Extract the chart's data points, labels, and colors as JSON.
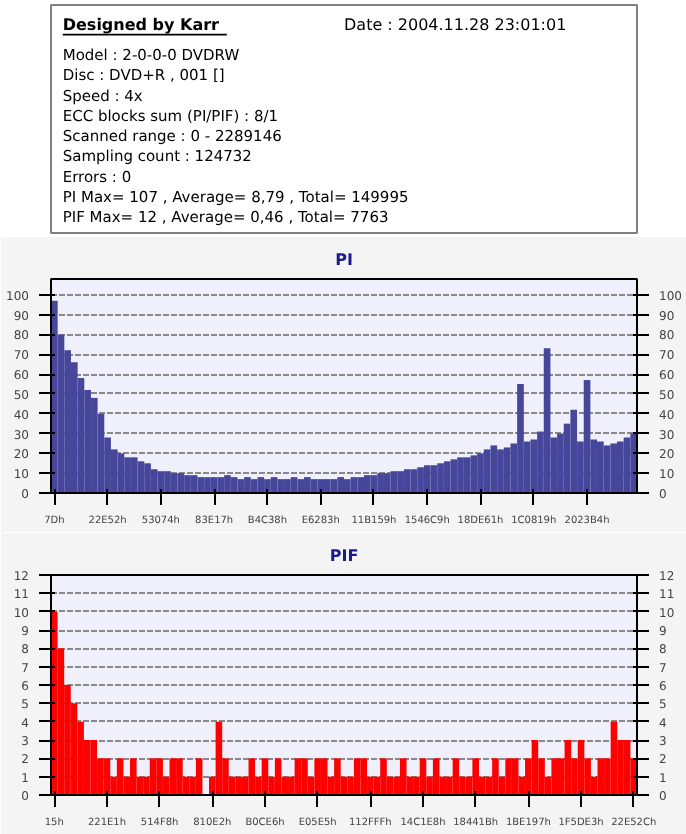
{
  "chart_data": [
    {
      "type": "other",
      "title": "Designed by Karr",
      "subtitle": "Date : 2004.11.28 23:01:01",
      "annotations": [
        "Model : 2-0-0-0 DVDRW",
        "Disc : DVD+R , 001 []",
        "Speed : 4x",
        "ECC blocks sum (PI/PIF) : 8/1",
        "Scanned range : 0 - 2289146",
        "Sampling count : 124732",
        "Errors : 0",
        "PI Max= 107 , Average= 8,79 , Total= 149995",
        "PIF Max= 12 , Average= 0,46 , Total= 7763"
      ]
    },
    {
      "type": "bar",
      "title": "PI",
      "color": "#46469a",
      "grid": "y",
      "ylim": [
        0,
        108
      ],
      "yticks": [
        0,
        10,
        20,
        30,
        40,
        50,
        60,
        70,
        80,
        90,
        100
      ],
      "y2lim": [
        0,
        108
      ],
      "y2ticks": [
        0,
        10,
        20,
        30,
        40,
        50,
        60,
        70,
        80,
        90,
        100
      ],
      "categories": [
        "7Dh",
        null,
        null,
        null,
        null,
        null,
        null,
        null,
        "22E52h",
        null,
        null,
        null,
        null,
        null,
        null,
        null,
        "53074h",
        null,
        null,
        null,
        null,
        null,
        null,
        null,
        "83E17h",
        null,
        null,
        null,
        null,
        null,
        null,
        null,
        "B4C38h",
        null,
        null,
        null,
        null,
        null,
        null,
        null,
        "E6283h",
        null,
        null,
        null,
        null,
        null,
        null,
        null,
        "11B159h",
        null,
        null,
        null,
        null,
        null,
        null,
        null,
        "1546C9h",
        null,
        null,
        null,
        null,
        null,
        null,
        null,
        "18DE61h",
        null,
        null,
        null,
        null,
        null,
        null,
        null,
        "1C0819h",
        null,
        null,
        null,
        null,
        null,
        null,
        null,
        "2023B4h",
        null,
        null,
        null,
        null,
        null,
        null,
        null
      ],
      "values": [
        97,
        80,
        72,
        66,
        58,
        52,
        48,
        40,
        28,
        22,
        20,
        18,
        18,
        16,
        15,
        12,
        11,
        11,
        10,
        10,
        9,
        9,
        8,
        8,
        8,
        8,
        9,
        8,
        7,
        8,
        7,
        8,
        7,
        8,
        7,
        7,
        8,
        7,
        8,
        7,
        7,
        7,
        7,
        8,
        7,
        8,
        8,
        9,
        9,
        10,
        10,
        11,
        11,
        12,
        12,
        13,
        14,
        14,
        15,
        16,
        17,
        18,
        18,
        19,
        20,
        22,
        24,
        22,
        23,
        25,
        55,
        26,
        27,
        31,
        73,
        28,
        30,
        35,
        42,
        26,
        57,
        27,
        26,
        24,
        25,
        26,
        28,
        30
      ]
    },
    {
      "type": "bar",
      "title": "PIF",
      "color": "#ff0000",
      "grid": "y",
      "ylim": [
        0,
        12
      ],
      "yticks": [
        0,
        1,
        2,
        3,
        4,
        5,
        6,
        7,
        8,
        9,
        10,
        11,
        12
      ],
      "y2lim": [
        0,
        12
      ],
      "y2ticks": [
        0,
        1,
        2,
        3,
        4,
        5,
        6,
        7,
        8,
        9,
        10,
        11,
        12
      ],
      "categories": [
        "15h",
        null,
        null,
        null,
        null,
        null,
        null,
        null,
        "221E1h",
        null,
        null,
        null,
        null,
        null,
        null,
        null,
        "514F8h",
        null,
        null,
        null,
        null,
        null,
        null,
        null,
        "810E2h",
        null,
        null,
        null,
        null,
        null,
        null,
        null,
        "B0CE6h",
        null,
        null,
        null,
        null,
        null,
        null,
        null,
        "E05E5h",
        null,
        null,
        null,
        null,
        null,
        null,
        null,
        "112FFFh",
        null,
        null,
        null,
        null,
        null,
        null,
        null,
        "14C1E8h",
        null,
        null,
        null,
        null,
        null,
        null,
        null,
        "18441Bh",
        null,
        null,
        null,
        null,
        null,
        null,
        null,
        "1BE197h",
        null,
        null,
        null,
        null,
        null,
        null,
        null,
        "1F5DE3h",
        null,
        null,
        null,
        null,
        null,
        null,
        null,
        "22E52Ch"
      ],
      "values": [
        10,
        8,
        6,
        5,
        4,
        3,
        3,
        2,
        2,
        1,
        2,
        1,
        2,
        1,
        1,
        2,
        2,
        1,
        2,
        2,
        1,
        1,
        2,
        0,
        1,
        4,
        2,
        1,
        1,
        1,
        2,
        1,
        2,
        1,
        2,
        1,
        1,
        2,
        2,
        1,
        2,
        2,
        1,
        2,
        1,
        1,
        2,
        2,
        1,
        1,
        2,
        1,
        1,
        2,
        1,
        1,
        2,
        1,
        2,
        1,
        1,
        2,
        1,
        1,
        2,
        1,
        1,
        2,
        1,
        2,
        2,
        1,
        2,
        3,
        2,
        1,
        2,
        2,
        3,
        2,
        3,
        2,
        1,
        2,
        2,
        4,
        3,
        3,
        2
      ]
    }
  ]
}
